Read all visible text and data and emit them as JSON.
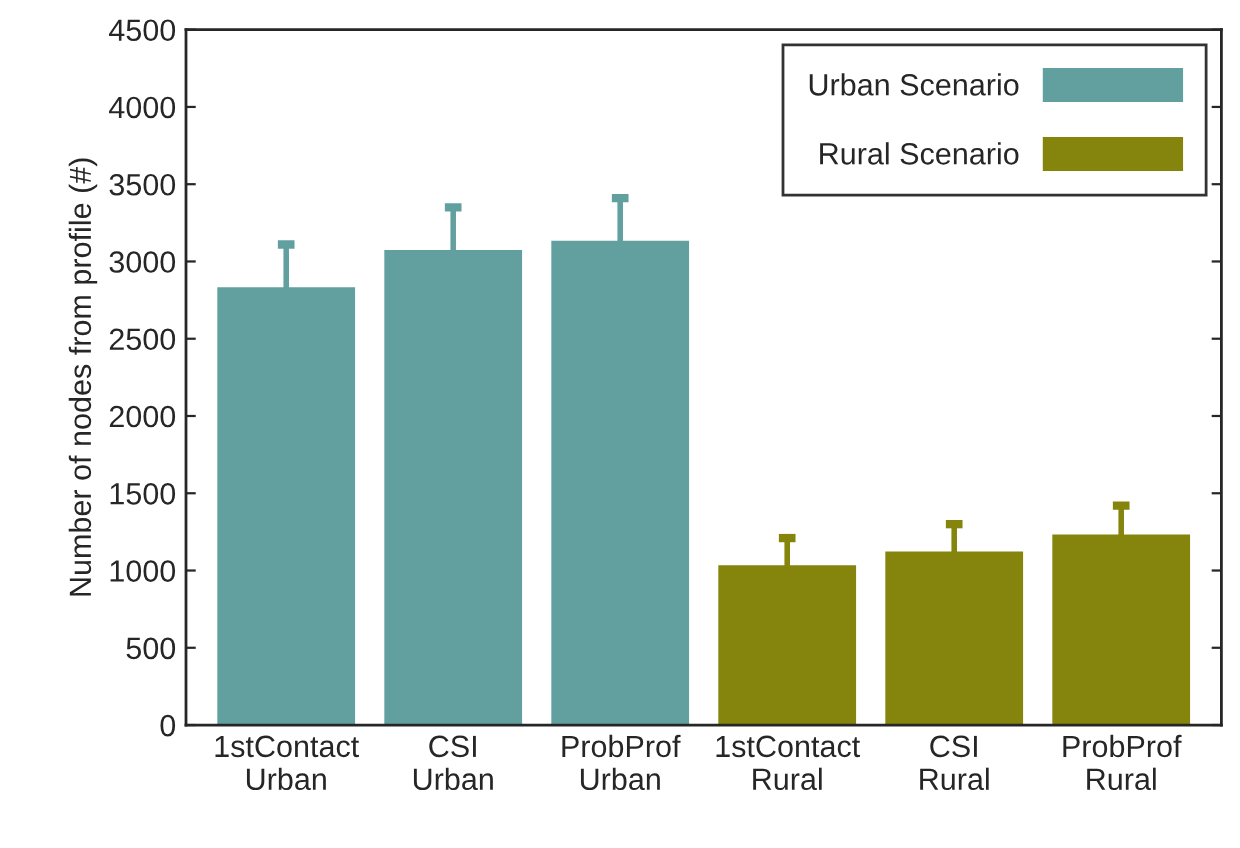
{
  "chart_data": {
    "type": "bar",
    "ylabel": "Number of nodes from profile (#)",
    "categories": [
      "1stContact\nUrban",
      "CSI\nUrban",
      "ProbProf\nUrban",
      "1stContact\nRural",
      "CSI\nRural",
      "ProbProf\nRural"
    ],
    "series": [
      {
        "name": "Urban Scenario",
        "color": "#62a0a0",
        "values": [
          2820,
          3060,
          3120,
          null,
          null,
          null
        ],
        "errors": [
          290,
          290,
          290,
          null,
          null,
          null
        ]
      },
      {
        "name": "Rural Scenario",
        "color": "#85850d",
        "values": [
          null,
          null,
          null,
          1020,
          1110,
          1220
        ],
        "errors": [
          null,
          null,
          null,
          190,
          190,
          200
        ]
      }
    ],
    "ylim": [
      0,
      4500
    ],
    "yticks": [
      0,
      500,
      1000,
      1500,
      2000,
      2500,
      3000,
      3500,
      4000,
      4500
    ],
    "grid": false,
    "legend": "top right"
  }
}
